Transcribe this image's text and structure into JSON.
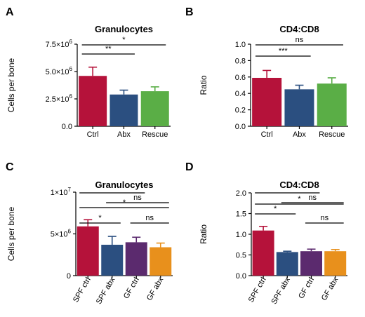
{
  "chart_data": [
    {
      "panel": "A",
      "type": "bar",
      "title": "Granulocytes",
      "ylabel": "Cells per bone",
      "categories": [
        "Ctrl",
        "Abx",
        "Rescue"
      ],
      "values": [
        4600000,
        2900000,
        3200000
      ],
      "errors": [
        800000,
        400000,
        400000
      ],
      "colors": [
        "#b5123a",
        "#2b4f80",
        "#5aae46"
      ],
      "ylim": [
        0,
        7500000
      ],
      "yticks": [
        {
          "value": 0,
          "base": "0.0",
          "exp": ""
        },
        {
          "value": 2500000,
          "base": "2.5×10",
          "exp": "6"
        },
        {
          "value": 5000000,
          "base": "5.0×10",
          "exp": "6"
        },
        {
          "value": 7500000,
          "base": "7.5×10",
          "exp": "6"
        }
      ],
      "significance": [
        {
          "from": 0,
          "to": 1,
          "label": "**"
        },
        {
          "from": 0,
          "to": 2,
          "label": "*"
        }
      ]
    },
    {
      "panel": "B",
      "type": "bar",
      "title": "CD4:CD8",
      "ylabel": "Ratio",
      "categories": [
        "Ctrl",
        "Abx",
        "Rescue"
      ],
      "values": [
        0.59,
        0.45,
        0.52
      ],
      "errors": [
        0.09,
        0.05,
        0.07
      ],
      "colors": [
        "#b5123a",
        "#2b4f80",
        "#5aae46"
      ],
      "ylim": [
        0,
        1.0
      ],
      "yticks": [
        {
          "value": 0,
          "base": "0.0",
          "exp": ""
        },
        {
          "value": 0.2,
          "base": "0.2",
          "exp": ""
        },
        {
          "value": 0.4,
          "base": "0.4",
          "exp": ""
        },
        {
          "value": 0.6,
          "base": "0.6",
          "exp": ""
        },
        {
          "value": 0.8,
          "base": "0.8",
          "exp": ""
        },
        {
          "value": 1.0,
          "base": "1.0",
          "exp": ""
        }
      ],
      "significance": [
        {
          "from": 0,
          "to": 1,
          "label": "***"
        },
        {
          "from": 0,
          "to": 2,
          "label": "ns"
        }
      ]
    },
    {
      "panel": "C",
      "type": "bar",
      "title": "Granulocytes",
      "ylabel": "Cells per bone",
      "categories": [
        "SPF ctrl",
        "SPF abx",
        "GF ctrl",
        "GF abx"
      ],
      "values": [
        5900000,
        3700000,
        4000000,
        3400000
      ],
      "errors": [
        800000,
        1000000,
        600000,
        500000
      ],
      "colors": [
        "#b5123a",
        "#2b4f80",
        "#5b2a6e",
        "#e8901c"
      ],
      "ylim": [
        0,
        10000000
      ],
      "yticks": [
        {
          "value": 0,
          "base": "0",
          "exp": ""
        },
        {
          "value": 5000000,
          "base": "5×10",
          "exp": "6"
        },
        {
          "value": 10000000,
          "base": "1×10",
          "exp": "7"
        }
      ],
      "significance": [
        {
          "from": 0,
          "to": 2,
          "label": ""
        },
        {
          "from": 0,
          "to": 1,
          "label": "*"
        },
        {
          "from": 0,
          "to": 3,
          "label": "*"
        },
        {
          "from": 1,
          "to": 3,
          "label": "ns"
        },
        {
          "from": 2,
          "to": 3,
          "label": "ns"
        }
      ]
    },
    {
      "panel": "D",
      "type": "bar",
      "title": "CD4:CD8",
      "ylabel": "Ratio",
      "categories": [
        "SPF ctrl",
        "SPF abx",
        "GF ctrl",
        "GF abx"
      ],
      "values": [
        1.09,
        0.57,
        0.59,
        0.59
      ],
      "errors": [
        0.1,
        0.02,
        0.05,
        0.04
      ],
      "colors": [
        "#b5123a",
        "#2b4f80",
        "#5b2a6e",
        "#e8901c"
      ],
      "ylim": [
        0,
        2.0
      ],
      "yticks": [
        {
          "value": 0,
          "base": "0.0",
          "exp": ""
        },
        {
          "value": 0.5,
          "base": "0.5",
          "exp": ""
        },
        {
          "value": 1.0,
          "base": "1.0",
          "exp": ""
        },
        {
          "value": 1.5,
          "base": "1.5",
          "exp": ""
        },
        {
          "value": 2.0,
          "base": "2.0",
          "exp": ""
        }
      ],
      "significance": [
        {
          "from": 0,
          "to": 2,
          "label": ""
        },
        {
          "from": 0,
          "to": 1,
          "label": "*"
        },
        {
          "from": 0,
          "to": 3,
          "label": "*"
        },
        {
          "from": 1,
          "to": 3,
          "label": "ns"
        },
        {
          "from": 2,
          "to": 3,
          "label": "ns"
        }
      ]
    }
  ]
}
